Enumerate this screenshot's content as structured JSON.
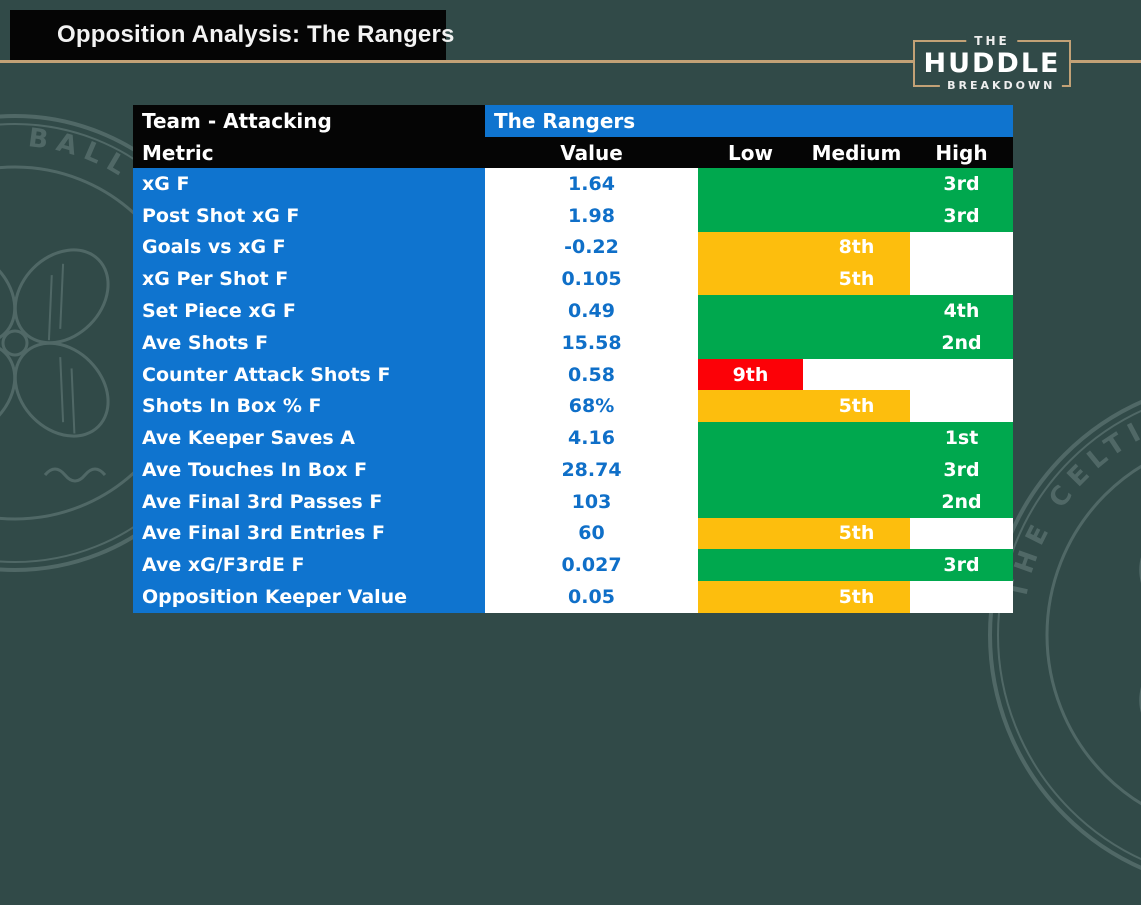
{
  "page": {
    "title": "Opposition Analysis: The Rangers"
  },
  "logo": {
    "top": "THE",
    "middle": "HUDDLE",
    "bottom": "BREAKDOWN"
  },
  "watermarks": {
    "left_text": "BALL CLUB",
    "right_text": "THE CELTIC"
  },
  "colors": {
    "background": "#314a48",
    "tan": "#c2a176",
    "blue": "#0f74cf",
    "value_text": "#0f6fc8",
    "green": "#00a84e",
    "yellow": "#fdbe0d",
    "red": "#fc0107",
    "header_black": "#050505",
    "watermark": "#6a8280"
  },
  "table": {
    "header": {
      "team_label": "Team - Attacking",
      "team_value": "The Rangers"
    },
    "columns": [
      "Metric",
      "Value",
      "Low",
      "Medium",
      "High"
    ],
    "rows": [
      {
        "metric": "xG F",
        "value": "1.64",
        "rank": "3rd",
        "rank_col": "high",
        "band": "green"
      },
      {
        "metric": "Post Shot xG F",
        "value": "1.98",
        "rank": "3rd",
        "rank_col": "high",
        "band": "green"
      },
      {
        "metric": "Goals vs xG F",
        "value": "-0.22",
        "rank": "8th",
        "rank_col": "medium",
        "band": "yellow"
      },
      {
        "metric": "xG Per Shot F",
        "value": "0.105",
        "rank": "5th",
        "rank_col": "medium",
        "band": "yellow"
      },
      {
        "metric": "Set Piece xG F",
        "value": "0.49",
        "rank": "4th",
        "rank_col": "high",
        "band": "green"
      },
      {
        "metric": "Ave Shots F",
        "value": "15.58",
        "rank": "2nd",
        "rank_col": "high",
        "band": "green"
      },
      {
        "metric": "Counter Attack Shots F",
        "value": "0.58",
        "rank": "9th",
        "rank_col": "low",
        "band": "red"
      },
      {
        "metric": "Shots In Box % F",
        "value": "68%",
        "rank": "5th",
        "rank_col": "medium",
        "band": "yellow"
      },
      {
        "metric": "Ave Keeper Saves A",
        "value": "4.16",
        "rank": "1st",
        "rank_col": "high",
        "band": "green"
      },
      {
        "metric": "Ave Touches In Box F",
        "value": "28.74",
        "rank": "3rd",
        "rank_col": "high",
        "band": "green"
      },
      {
        "metric": "Ave Final 3rd Passes F",
        "value": "103",
        "rank": "2nd",
        "rank_col": "high",
        "band": "green"
      },
      {
        "metric": "Ave Final 3rd Entries F",
        "value": "60",
        "rank": "5th",
        "rank_col": "medium",
        "band": "yellow"
      },
      {
        "metric": "Ave xG/F3rdE F",
        "value": "0.027",
        "rank": "3rd",
        "rank_col": "high",
        "band": "green"
      },
      {
        "metric": "Opposition Keeper Value",
        "value": "0.05",
        "rank": "5th",
        "rank_col": "medium",
        "band": "yellow"
      }
    ]
  }
}
